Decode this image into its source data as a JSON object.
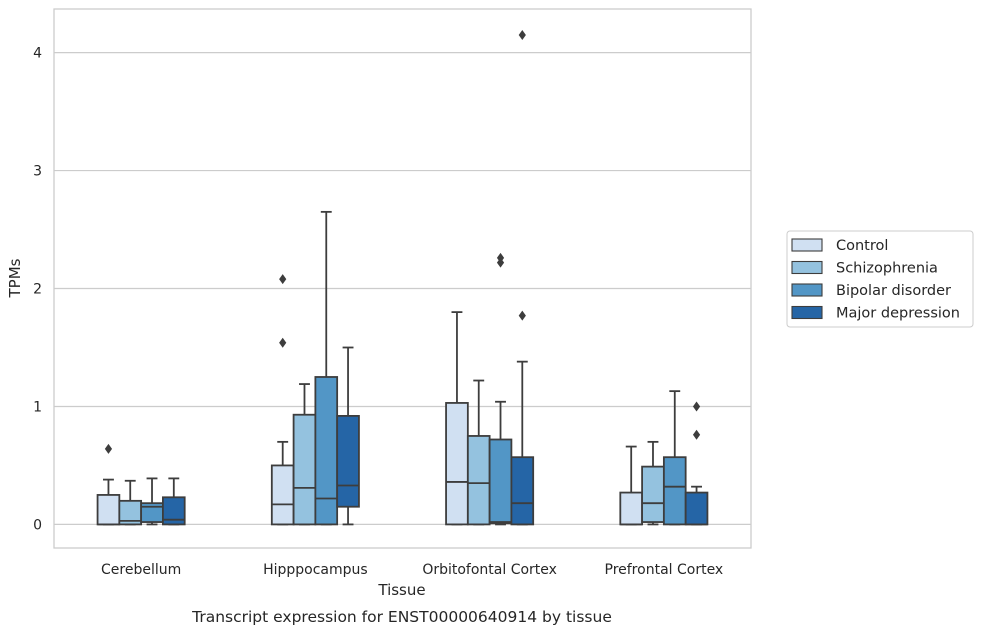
{
  "chart_data": {
    "type": "box",
    "caption": "Transcript expression for ENST00000640914 by tissue",
    "xlabel": "Tissue",
    "ylabel": "TPMs",
    "ylim": [
      -0.2,
      4.37
    ],
    "yticks": [
      0,
      1,
      2,
      3,
      4
    ],
    "grid": true,
    "legend_position": "right",
    "categories": [
      "Cerebellum",
      "Hipppocampus",
      "Orbitofontal Cortex",
      "Prefrontal Cortex"
    ],
    "series": [
      {
        "name": "Control",
        "color": "#d0e0f2",
        "boxes": [
          {
            "whisker_low": 0,
            "q1": 0,
            "median": 0.0,
            "q3": 0.25,
            "whisker_high": 0.38,
            "outliers": [
              0.64
            ]
          },
          {
            "whisker_low": 0,
            "q1": 0,
            "median": 0.17,
            "q3": 0.5,
            "whisker_high": 0.7,
            "outliers": [
              1.54,
              2.08
            ]
          },
          {
            "whisker_low": 0,
            "q1": 0,
            "median": 0.36,
            "q3": 1.03,
            "whisker_high": 1.8,
            "outliers": []
          },
          {
            "whisker_low": 0,
            "q1": 0,
            "median": 0.0,
            "q3": 0.27,
            "whisker_high": 0.66,
            "outliers": []
          }
        ]
      },
      {
        "name": "Schizophrenia",
        "color": "#94c2df",
        "boxes": [
          {
            "whisker_low": 0,
            "q1": 0.0,
            "median": 0.03,
            "q3": 0.2,
            "whisker_high": 0.37,
            "outliers": []
          },
          {
            "whisker_low": 0,
            "q1": 0,
            "median": 0.31,
            "q3": 0.93,
            "whisker_high": 1.19,
            "outliers": []
          },
          {
            "whisker_low": 0,
            "q1": 0.0,
            "median": 0.35,
            "q3": 0.75,
            "whisker_high": 1.22,
            "outliers": []
          },
          {
            "whisker_low": 0,
            "q1": 0.02,
            "median": 0.18,
            "q3": 0.49,
            "whisker_high": 0.7,
            "outliers": []
          }
        ]
      },
      {
        "name": "Bipolar disorder",
        "color": "#5296c6",
        "boxes": [
          {
            "whisker_low": 0,
            "q1": 0.02,
            "median": 0.15,
            "q3": 0.18,
            "whisker_high": 0.39,
            "outliers": []
          },
          {
            "whisker_low": 0,
            "q1": 0,
            "median": 0.22,
            "q3": 1.25,
            "whisker_high": 2.65,
            "outliers": []
          },
          {
            "whisker_low": 0,
            "q1": 0.01,
            "median": 0.02,
            "q3": 0.72,
            "whisker_high": 1.04,
            "outliers": [
              2.22,
              2.26
            ]
          },
          {
            "whisker_low": 0,
            "q1": 0,
            "median": 0.32,
            "q3": 0.57,
            "whisker_high": 1.13,
            "outliers": []
          }
        ]
      },
      {
        "name": "Major depression",
        "color": "#2565a6",
        "boxes": [
          {
            "whisker_low": 0,
            "q1": 0.0,
            "median": 0.04,
            "q3": 0.23,
            "whisker_high": 0.39,
            "outliers": []
          },
          {
            "whisker_low": 0,
            "q1": 0.15,
            "median": 0.33,
            "q3": 0.92,
            "whisker_high": 1.5,
            "outliers": []
          },
          {
            "whisker_low": 0,
            "q1": 0,
            "median": 0.18,
            "q3": 0.57,
            "whisker_high": 1.38,
            "outliers": [
              1.77,
              4.15
            ]
          },
          {
            "whisker_low": 0,
            "q1": 0,
            "median": 0.0,
            "q3": 0.27,
            "whisker_high": 0.32,
            "outliers": [
              0.76,
              1.0
            ]
          }
        ]
      }
    ]
  }
}
